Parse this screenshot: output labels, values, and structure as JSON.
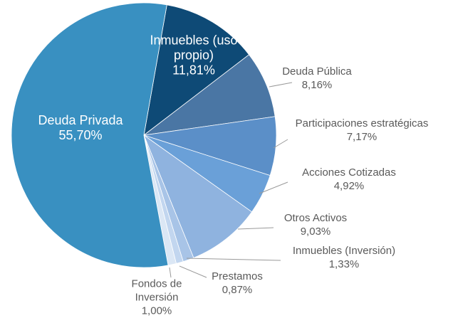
{
  "chart_data": {
    "type": "pie",
    "categories": [
      "Inmuebles (uso propio)",
      "Deuda Pública",
      "Participaciones estratégicas",
      "Acciones Cotizadas",
      "Otros Activos",
      "Inmuebles (Inversión)",
      "Prestamos",
      "Fondos de Inversión",
      "Deuda Privada"
    ],
    "values": [
      11.81,
      8.16,
      7.17,
      4.92,
      9.03,
      1.33,
      0.87,
      1.0,
      55.7
    ],
    "value_labels": [
      "11,81%",
      "8,16%",
      "7,17%",
      "4,92%",
      "9,03%",
      "1,33%",
      "0,87%",
      "1,00%",
      "55,70%"
    ],
    "colors": [
      "#0e4a76",
      "#4a76a4",
      "#5b8fc8",
      "#6aa0d8",
      "#8fb3df",
      "#a8c4e7",
      "#c2d6ef",
      "#dbe7f5",
      "#3990c1"
    ]
  }
}
